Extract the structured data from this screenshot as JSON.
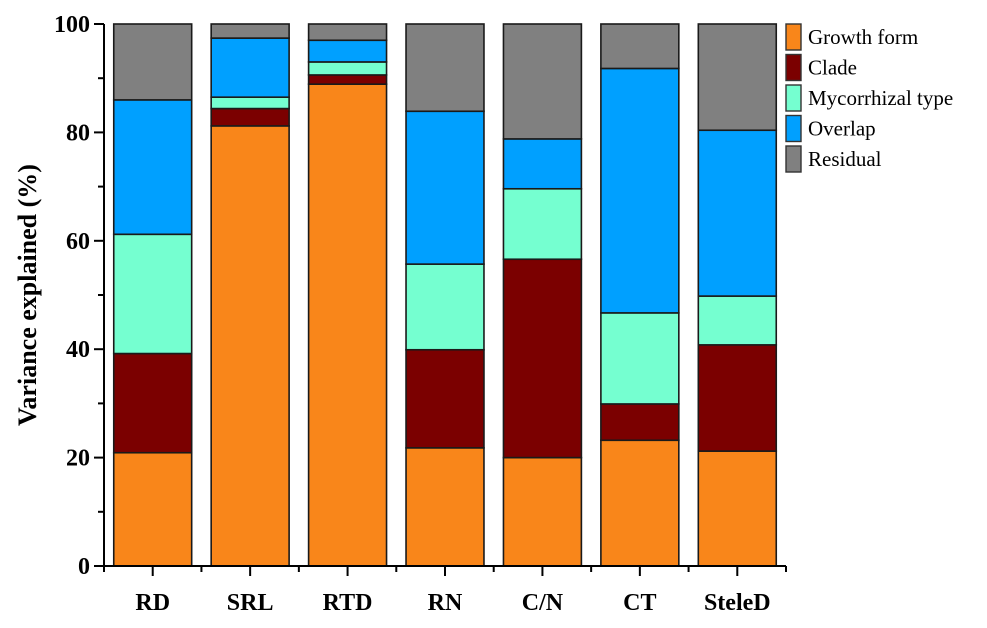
{
  "chart_data": {
    "type": "bar",
    "stacked": true,
    "title": "",
    "xlabel": "",
    "ylabel": "Variance explained (%)",
    "ylim": [
      0,
      100
    ],
    "yticks": [
      0,
      20,
      40,
      60,
      80,
      100
    ],
    "yticks_minor": [
      10,
      30,
      50,
      70,
      90
    ],
    "grid": false,
    "legend_position": "top-right",
    "categories": [
      "RD",
      "SRL",
      "RTD",
      "RN",
      "C/N",
      "CT",
      "SteleD"
    ],
    "series": [
      {
        "name": "Growth form",
        "color": "#F9861A",
        "values": [
          20.9,
          81.2,
          88.9,
          21.8,
          20.0,
          23.2,
          21.2
        ]
      },
      {
        "name": "Clade",
        "color": "#7B0000",
        "values": [
          18.3,
          3.2,
          1.7,
          18.1,
          36.6,
          6.7,
          19.6
        ]
      },
      {
        "name": "Mycorrhizal type",
        "color": "#75FFD0",
        "values": [
          22.0,
          2.1,
          2.4,
          15.8,
          13.0,
          16.8,
          9.0
        ]
      },
      {
        "name": "Overlap",
        "color": "#00A0FF",
        "values": [
          24.8,
          10.9,
          4.0,
          28.2,
          9.2,
          45.1,
          30.6
        ]
      },
      {
        "name": "Residual",
        "color": "#808080",
        "values": [
          14.0,
          2.6,
          3.0,
          16.1,
          21.2,
          8.2,
          19.6
        ]
      }
    ]
  }
}
